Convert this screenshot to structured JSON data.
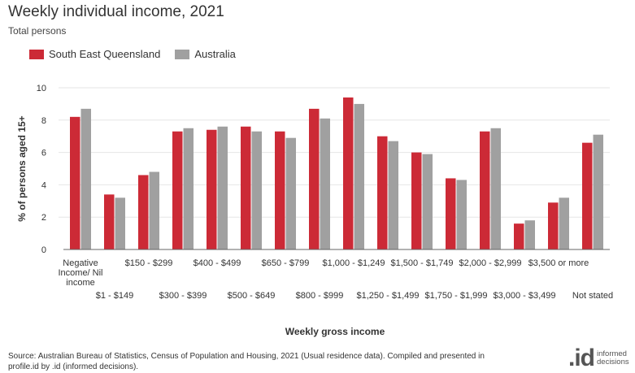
{
  "colors": {
    "sri": "#cc2a36",
    "aus": "#a0a0a0",
    "grid": "#e6e6e6",
    "axis": "#333333"
  },
  "legend": {
    "series1": "South East Queensland",
    "series2": "Australia"
  },
  "source": {
    "line1": "Source: Australian Bureau of Statistics, Census of Population and Housing, 2021 (Usual residence data). Compiled and presented in",
    "line2": "profile.id by .id (informed decisions)."
  },
  "logo": {
    "mark": ".id",
    "line1": "informed",
    "line2": "decisions"
  },
  "chart_data": {
    "type": "bar",
    "title": "Weekly individual income, 2021",
    "subtitle": "Total persons",
    "xlabel": "Weekly gross income",
    "ylabel": "% of persons aged 15+",
    "ylim": [
      0,
      10
    ],
    "yticks": [
      0,
      2,
      4,
      6,
      8,
      10
    ],
    "grid": true,
    "legend_position": "top-left",
    "categories": [
      "Negative Income/ Nil income",
      "$1 - $149",
      "$150 - $299",
      "$300 - $399",
      "$400 - $499",
      "$500 - $649",
      "$650 - $799",
      "$800 - $999",
      "$1,000 - $1,249",
      "$1,250 - $1,499",
      "$1,500 - $1,749",
      "$1,750 - $1,999",
      "$2,000 - $2,999",
      "$3,000 - $3,499",
      "$3,500 or more",
      "Not stated"
    ],
    "category_lines": [
      [
        "Negative",
        "Income/ Nil",
        "income"
      ],
      [
        "$1 - $149"
      ],
      [
        "$150 - $299"
      ],
      [
        "$300 - $399"
      ],
      [
        "$400 - $499"
      ],
      [
        "$500 - $649"
      ],
      [
        "$650 - $799"
      ],
      [
        "$800 - $999"
      ],
      [
        "$1,000 - $1,249"
      ],
      [
        "$1,250 - $1,499"
      ],
      [
        "$1,500 - $1,749"
      ],
      [
        "$1,750 - $1,999"
      ],
      [
        "$2,000 - $2,999"
      ],
      [
        "$3,000 - $3,499"
      ],
      [
        "$3,500 or more"
      ],
      [
        "Not stated"
      ]
    ],
    "series": [
      {
        "name": "South East Queensland",
        "values": [
          8.2,
          3.4,
          4.6,
          7.3,
          7.4,
          7.6,
          7.3,
          8.7,
          9.4,
          7.0,
          6.0,
          4.4,
          7.3,
          1.6,
          2.9,
          6.6
        ]
      },
      {
        "name": "Australia",
        "values": [
          8.7,
          3.2,
          4.8,
          7.5,
          7.6,
          7.3,
          6.9,
          8.1,
          9.0,
          6.7,
          5.9,
          4.3,
          7.5,
          1.8,
          3.2,
          7.1
        ]
      }
    ]
  }
}
